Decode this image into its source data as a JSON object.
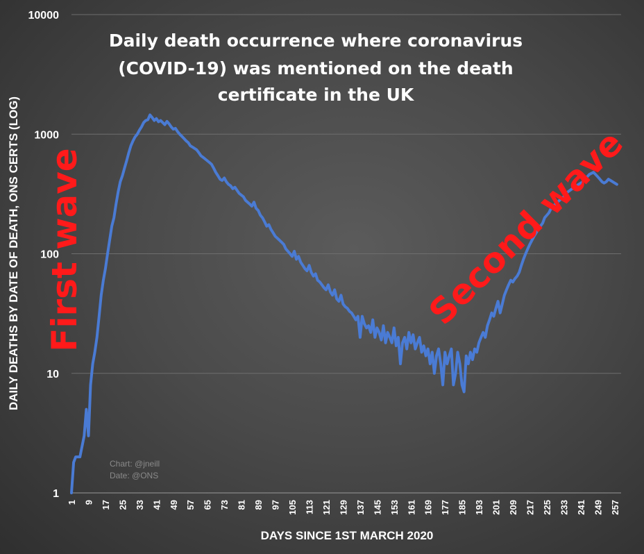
{
  "chart_data": {
    "type": "line",
    "title_lines": [
      "Daily death occurrence where coronavirus",
      "(COVID-19) was mentioned on the death",
      "certificate in the UK"
    ],
    "xlabel": "DAYS SINCE 1ST MARCH 2020",
    "ylabel": "DAILY DEATHS BY DATE OF DEATH, ONS CERTS (LOG)",
    "yscale": "log",
    "ylim": [
      1,
      10000
    ],
    "xlim": [
      1,
      260
    ],
    "y_ticks": [
      "1",
      "10",
      "100",
      "1000",
      "10000"
    ],
    "x_ticks": [
      "1",
      "9",
      "17",
      "25",
      "33",
      "41",
      "49",
      "57",
      "65",
      "73",
      "81",
      "89",
      "97",
      "105",
      "113",
      "121",
      "129",
      "137",
      "145",
      "153",
      "161",
      "169",
      "177",
      "185",
      "193",
      "201",
      "209",
      "217",
      "225",
      "233",
      "241",
      "249",
      "257"
    ],
    "grid": true,
    "line_color": "#4a7bd4",
    "annotations": {
      "first_wave": "First wave",
      "second_wave": "Second wave",
      "credit_chart": "Chart: @jneill",
      "credit_date": "Date: @ONS"
    },
    "annotation_color": "#ff1a1a",
    "series": [
      {
        "points": [
          [
            1,
            1
          ],
          [
            2,
            1.8
          ],
          [
            3,
            2
          ],
          [
            5,
            2
          ],
          [
            7,
            3
          ],
          [
            8,
            5
          ],
          [
            9,
            3
          ],
          [
            10,
            8
          ],
          [
            11,
            12
          ],
          [
            12,
            15
          ],
          [
            13,
            20
          ],
          [
            14,
            30
          ],
          [
            15,
            45
          ],
          [
            16,
            60
          ],
          [
            17,
            75
          ],
          [
            18,
            100
          ],
          [
            19,
            130
          ],
          [
            20,
            170
          ],
          [
            21,
            200
          ],
          [
            22,
            260
          ],
          [
            23,
            330
          ],
          [
            24,
            400
          ],
          [
            25,
            450
          ],
          [
            26,
            520
          ],
          [
            27,
            600
          ],
          [
            28,
            700
          ],
          [
            29,
            800
          ],
          [
            30,
            880
          ],
          [
            31,
            950
          ],
          [
            32,
            1000
          ],
          [
            33,
            1080
          ],
          [
            34,
            1150
          ],
          [
            35,
            1250
          ],
          [
            36,
            1300
          ],
          [
            37,
            1320
          ],
          [
            38,
            1450
          ],
          [
            39,
            1380
          ],
          [
            40,
            1300
          ],
          [
            41,
            1350
          ],
          [
            42,
            1270
          ],
          [
            43,
            1300
          ],
          [
            44,
            1250
          ],
          [
            45,
            1200
          ],
          [
            46,
            1280
          ],
          [
            47,
            1220
          ],
          [
            48,
            1150
          ],
          [
            49,
            1100
          ],
          [
            50,
            1120
          ],
          [
            51,
            1050
          ],
          [
            52,
            1000
          ],
          [
            53,
            960
          ],
          [
            54,
            920
          ],
          [
            55,
            880
          ],
          [
            56,
            850
          ],
          [
            57,
            800
          ],
          [
            58,
            780
          ],
          [
            59,
            760
          ],
          [
            60,
            740
          ],
          [
            61,
            700
          ],
          [
            62,
            660
          ],
          [
            63,
            640
          ],
          [
            64,
            620
          ],
          [
            65,
            600
          ],
          [
            66,
            580
          ],
          [
            67,
            560
          ],
          [
            68,
            520
          ],
          [
            69,
            480
          ],
          [
            70,
            450
          ],
          [
            71,
            420
          ],
          [
            72,
            410
          ],
          [
            73,
            430
          ],
          [
            74,
            400
          ],
          [
            75,
            380
          ],
          [
            76,
            370
          ],
          [
            77,
            350
          ],
          [
            78,
            360
          ],
          [
            79,
            340
          ],
          [
            80,
            320
          ],
          [
            81,
            310
          ],
          [
            82,
            300
          ],
          [
            83,
            280
          ],
          [
            84,
            270
          ],
          [
            85,
            260
          ],
          [
            86,
            250
          ],
          [
            87,
            270
          ],
          [
            88,
            240
          ],
          [
            89,
            230
          ],
          [
            90,
            210
          ],
          [
            91,
            200
          ],
          [
            92,
            185
          ],
          [
            93,
            170
          ],
          [
            94,
            175
          ],
          [
            95,
            160
          ],
          [
            96,
            150
          ],
          [
            97,
            140
          ],
          [
            98,
            135
          ],
          [
            99,
            130
          ],
          [
            100,
            125
          ],
          [
            101,
            120
          ],
          [
            102,
            110
          ],
          [
            103,
            105
          ],
          [
            104,
            100
          ],
          [
            105,
            95
          ],
          [
            106,
            105
          ],
          [
            107,
            90
          ],
          [
            108,
            95
          ],
          [
            109,
            85
          ],
          [
            110,
            80
          ],
          [
            111,
            75
          ],
          [
            112,
            72
          ],
          [
            113,
            80
          ],
          [
            114,
            70
          ],
          [
            115,
            65
          ],
          [
            116,
            68
          ],
          [
            117,
            60
          ],
          [
            118,
            58
          ],
          [
            119,
            55
          ],
          [
            120,
            52
          ],
          [
            121,
            50
          ],
          [
            122,
            55
          ],
          [
            123,
            48
          ],
          [
            124,
            45
          ],
          [
            125,
            50
          ],
          [
            126,
            42
          ],
          [
            127,
            40
          ],
          [
            128,
            45
          ],
          [
            129,
            38
          ],
          [
            130,
            36
          ],
          [
            131,
            35
          ],
          [
            132,
            33
          ],
          [
            133,
            32
          ],
          [
            134,
            30
          ],
          [
            135,
            28
          ],
          [
            136,
            30
          ],
          [
            137,
            20
          ],
          [
            138,
            30
          ],
          [
            139,
            26
          ],
          [
            140,
            24
          ],
          [
            141,
            25
          ],
          [
            142,
            22
          ],
          [
            143,
            28
          ],
          [
            144,
            20
          ],
          [
            145,
            24
          ],
          [
            146,
            22
          ],
          [
            147,
            19
          ],
          [
            148,
            25
          ],
          [
            149,
            18
          ],
          [
            150,
            22
          ],
          [
            151,
            20
          ],
          [
            152,
            18
          ],
          [
            153,
            24
          ],
          [
            154,
            17
          ],
          [
            155,
            20
          ],
          [
            156,
            12
          ],
          [
            157,
            18
          ],
          [
            158,
            20
          ],
          [
            159,
            16
          ],
          [
            160,
            22
          ],
          [
            161,
            18
          ],
          [
            162,
            21
          ],
          [
            163,
            16
          ],
          [
            164,
            18
          ],
          [
            165,
            20
          ],
          [
            166,
            15
          ],
          [
            167,
            17
          ],
          [
            168,
            14
          ],
          [
            169,
            16
          ],
          [
            170,
            12
          ],
          [
            171,
            15
          ],
          [
            172,
            10
          ],
          [
            173,
            14
          ],
          [
            174,
            16
          ],
          [
            175,
            12
          ],
          [
            176,
            8
          ],
          [
            177,
            15
          ],
          [
            178,
            12
          ],
          [
            179,
            14
          ],
          [
            180,
            16
          ],
          [
            181,
            8
          ],
          [
            182,
            10
          ],
          [
            183,
            15
          ],
          [
            184,
            12
          ],
          [
            185,
            8
          ],
          [
            186,
            7
          ],
          [
            187,
            14
          ],
          [
            188,
            12
          ],
          [
            189,
            15
          ],
          [
            190,
            13
          ],
          [
            191,
            16
          ],
          [
            192,
            15
          ],
          [
            193,
            18
          ],
          [
            194,
            20
          ],
          [
            195,
            22
          ],
          [
            196,
            20
          ],
          [
            197,
            25
          ],
          [
            198,
            28
          ],
          [
            199,
            32
          ],
          [
            200,
            30
          ],
          [
            201,
            35
          ],
          [
            202,
            40
          ],
          [
            203,
            32
          ],
          [
            204,
            38
          ],
          [
            205,
            45
          ],
          [
            206,
            50
          ],
          [
            207,
            55
          ],
          [
            208,
            60
          ],
          [
            209,
            58
          ],
          [
            210,
            62
          ],
          [
            211,
            65
          ],
          [
            212,
            70
          ],
          [
            213,
            80
          ],
          [
            214,
            90
          ],
          [
            215,
            100
          ],
          [
            216,
            110
          ],
          [
            217,
            120
          ],
          [
            218,
            130
          ],
          [
            219,
            140
          ],
          [
            220,
            150
          ],
          [
            221,
            160
          ],
          [
            222,
            170
          ],
          [
            223,
            180
          ],
          [
            224,
            200
          ],
          [
            225,
            210
          ],
          [
            226,
            220
          ],
          [
            227,
            240
          ],
          [
            228,
            250
          ],
          [
            229,
            260
          ],
          [
            230,
            270
          ],
          [
            231,
            280
          ],
          [
            232,
            290
          ],
          [
            233,
            300
          ],
          [
            234,
            320
          ],
          [
            235,
            330
          ],
          [
            236,
            340
          ],
          [
            237,
            350
          ],
          [
            238,
            360
          ],
          [
            239,
            370
          ],
          [
            240,
            380
          ],
          [
            241,
            390
          ],
          [
            242,
            400
          ],
          [
            243,
            420
          ],
          [
            244,
            440
          ],
          [
            245,
            460
          ],
          [
            246,
            470
          ],
          [
            247,
            480
          ],
          [
            248,
            460
          ],
          [
            249,
            440
          ],
          [
            250,
            420
          ],
          [
            251,
            400
          ],
          [
            252,
            390
          ],
          [
            253,
            400
          ],
          [
            254,
            420
          ],
          [
            255,
            410
          ],
          [
            256,
            400
          ],
          [
            257,
            390
          ],
          [
            258,
            380
          ]
        ]
      }
    ]
  }
}
